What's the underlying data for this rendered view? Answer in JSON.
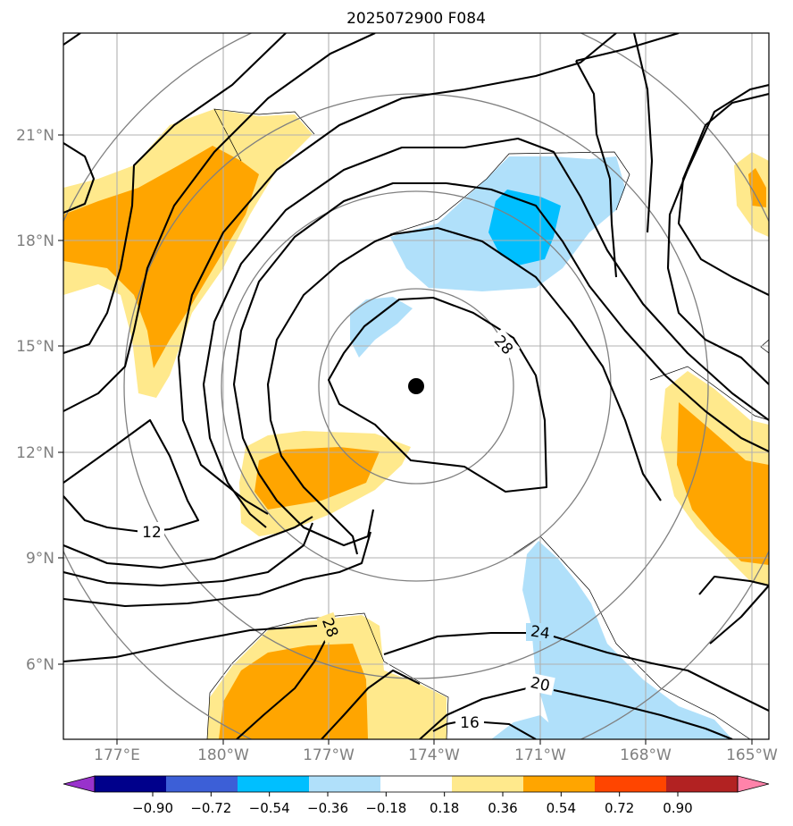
{
  "title": "2025072900 F084",
  "map": {
    "lon_labels": [
      "177°E",
      "180°W",
      "177°W",
      "174°W",
      "171°W",
      "168°W",
      "165°W"
    ],
    "lat_labels": [
      "21°N",
      "18°N",
      "15°N",
      "12°N",
      "9°N",
      "6°N"
    ],
    "contour_labels": [
      "12",
      "28",
      "28",
      "24",
      "20",
      "16"
    ],
    "center_marker": "storm-center"
  },
  "colorbar": {
    "ticks": [
      "−0.90",
      "−0.72",
      "−0.54",
      "−0.36",
      "−0.18",
      "0.18",
      "0.36",
      "0.54",
      "0.72",
      "0.90"
    ],
    "colors": [
      "#9932cc",
      "#00008b",
      "#3c5fd7",
      "#00bfff",
      "#b0e0fa",
      "#ffffff",
      "#ffe98c",
      "#ffa500",
      "#ff4500",
      "#b22222",
      "#ff83aa"
    ]
  },
  "colors": {
    "light_yellow": "#ffe98c",
    "orange": "#ffa500",
    "light_blue": "#b0e0fa",
    "deep_sky_blue": "#00bfff",
    "contour": "#000000",
    "grid": "#b0b0b0",
    "range_rings": "#808080"
  }
}
